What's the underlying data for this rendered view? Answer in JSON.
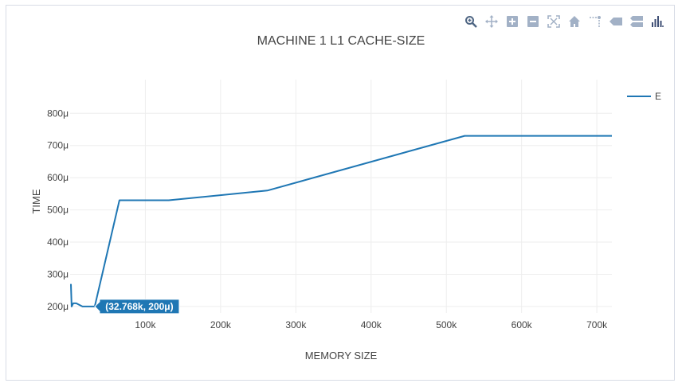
{
  "modebar": {
    "buttons": [
      {
        "name": "zoom-icon",
        "title": "Zoom"
      },
      {
        "name": "pan-icon",
        "title": "Pan"
      },
      {
        "name": "zoom-in-icon",
        "title": "Zoom in"
      },
      {
        "name": "zoom-out-icon",
        "title": "Zoom out"
      },
      {
        "name": "autoscale-icon",
        "title": "Autoscale"
      },
      {
        "name": "reset-axes-icon",
        "title": "Reset axes"
      },
      {
        "name": "spike-lines-icon",
        "title": "Toggle Spike Lines"
      },
      {
        "name": "hover-closest-icon",
        "title": "Show closest data on hover"
      },
      {
        "name": "hover-compare-icon",
        "title": "Compare data on hover"
      },
      {
        "name": "plotly-logo-icon",
        "title": "Produced with Plotly"
      }
    ],
    "icon_color": "#a2b1c6",
    "active_color": "#506784"
  },
  "chart_data": {
    "type": "line",
    "title": "MACHINE 1 L1 CACHE-SIZE",
    "xlabel": "MEMORY SIZE",
    "ylabel": "TIME",
    "xlim": [
      0,
      720000
    ],
    "ylim": [
      180,
      860
    ],
    "x_ticks": [
      {
        "value": 100000,
        "label": "100k"
      },
      {
        "value": 200000,
        "label": "200k"
      },
      {
        "value": 300000,
        "label": "300k"
      },
      {
        "value": 400000,
        "label": "400k"
      },
      {
        "value": 500000,
        "label": "500k"
      },
      {
        "value": 600000,
        "label": "600k"
      },
      {
        "value": 700000,
        "label": "700k"
      }
    ],
    "y_ticks": [
      {
        "value": 200,
        "label": "200μ"
      },
      {
        "value": 300,
        "label": "300μ"
      },
      {
        "value": 400,
        "label": "400μ"
      },
      {
        "value": 500,
        "label": "500μ"
      },
      {
        "value": 600,
        "label": "600μ"
      },
      {
        "value": 700,
        "label": "700μ"
      },
      {
        "value": 800,
        "label": "800μ"
      }
    ],
    "grid": true,
    "legend_position": "top-right",
    "series": [
      {
        "name": "E",
        "color": "#1f77b4",
        "x": [
          1024,
          2048,
          4096,
          8192,
          16384,
          32768,
          65536,
          131072,
          262144,
          524288,
          720000
        ],
        "y": [
          270,
          200,
          210,
          210,
          200,
          200,
          530,
          530,
          560,
          730,
          730
        ]
      }
    ],
    "hover": {
      "label": "(32.768k, 200μ)",
      "x": 32768,
      "y": 200,
      "bg": "#1f77b4"
    }
  }
}
